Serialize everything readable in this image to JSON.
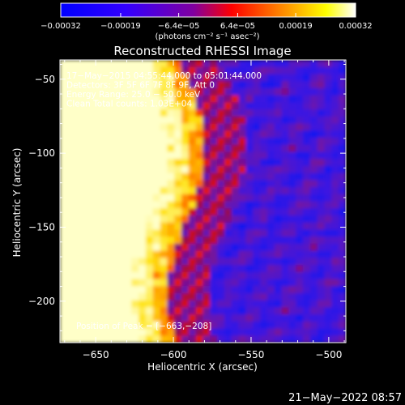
{
  "chart_data": {
    "type": "heatmap",
    "title": "Reconstructed RHESSI Image",
    "xlabel": "Heliocentric X (arcsec)",
    "ylabel": "Heliocentric Y (arcsec)",
    "xlim": [
      -673,
      -489
    ],
    "ylim": [
      -228,
      -37
    ],
    "x_ticks": [
      -650,
      -600,
      -550,
      -500
    ],
    "x_tick_labels": [
      "−650",
      "−600",
      "−550",
      "−500"
    ],
    "y_ticks": [
      -50,
      -100,
      -150,
      -200
    ],
    "y_tick_labels": [
      "−50",
      "−100",
      "−150",
      "−200"
    ],
    "colorbar": {
      "ticks": [
        -0.00032,
        -0.00019,
        -6.4e-05,
        6.4e-05,
        0.00019,
        0.00032
      ],
      "tick_labels": [
        "−0.00032",
        "−0.00019",
        "−6.4e−05",
        "6.4e−05",
        "0.00019",
        "0.00032"
      ],
      "range": [
        -0.00032,
        0.00032
      ],
      "unit_label": "(photons cm⁻² s⁻¹ asec⁻²)",
      "colors": [
        "#0000ff",
        "#7700cc",
        "#ff0000",
        "#ff9900",
        "#ffff00",
        "#ffffff"
      ]
    },
    "annotations": [
      "17−May−2015 04:55:44.000 to 05:01:44.000",
      "Detectors: 3F 5F 6F 7F 8F 9F, Att 0",
      "Energy Range: 25.0 − 50.0 keV",
      "Clean     Total counts: 1.03E+04"
    ],
    "peak_label": "Position of Peak = [−663,−208]",
    "peak_position": [
      -663,
      -208
    ],
    "timestamp": "21−May−2022 08:57"
  }
}
